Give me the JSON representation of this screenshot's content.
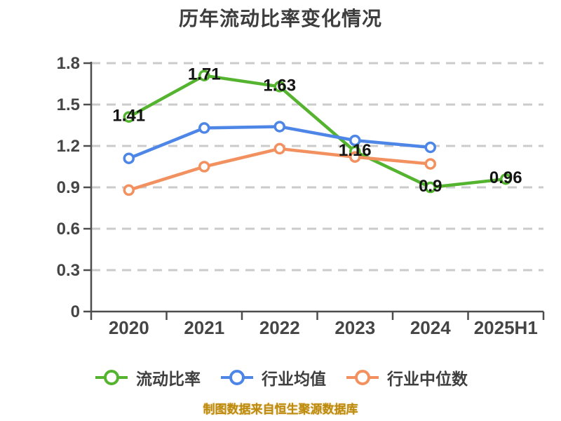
{
  "title": "历年流动比率变化情况",
  "source_note": "制图数据来自恒生聚源数据库",
  "colors": {
    "series_green": "#55B42F",
    "series_blue": "#4D86E6",
    "series_orange": "#F2915F",
    "grid": "#CBCBCB",
    "axis": "#4D4D4D",
    "tick_label": "#454545",
    "title_text": "#3D3D3D",
    "data_label": "#141414",
    "legend_text": "#3F3F3F",
    "source_text": "#BE8A0B",
    "background": "#FFFFFF"
  },
  "chart_data": {
    "type": "line",
    "title": "历年流动比率变化情况",
    "categories": [
      "2020",
      "2021",
      "2022",
      "2023",
      "2024",
      "2025H1"
    ],
    "series": [
      {
        "name": "流动比率",
        "color_key": "series_green",
        "values": [
          1.41,
          1.71,
          1.63,
          1.16,
          0.9,
          0.96
        ],
        "point_labels": [
          "1.41",
          "1.71",
          "1.63",
          "1.16",
          "0.9",
          "0.96"
        ]
      },
      {
        "name": "行业均值",
        "color_key": "series_blue",
        "values": [
          1.11,
          1.33,
          1.34,
          1.24,
          1.19,
          null
        ],
        "point_labels": null
      },
      {
        "name": "行业中位数",
        "color_key": "series_orange",
        "values": [
          0.88,
          1.05,
          1.18,
          1.12,
          1.07,
          null
        ],
        "point_labels": null
      }
    ],
    "ylim": [
      0,
      1.8
    ],
    "yticks": [
      0,
      0.3,
      0.6,
      0.9,
      1.2,
      1.5,
      1.8
    ],
    "grid": true,
    "grid_style": "dashed",
    "legend_position": "bottom",
    "xlabel": "",
    "ylabel": "",
    "source_note": "制图数据来自恒生聚源数据库"
  }
}
